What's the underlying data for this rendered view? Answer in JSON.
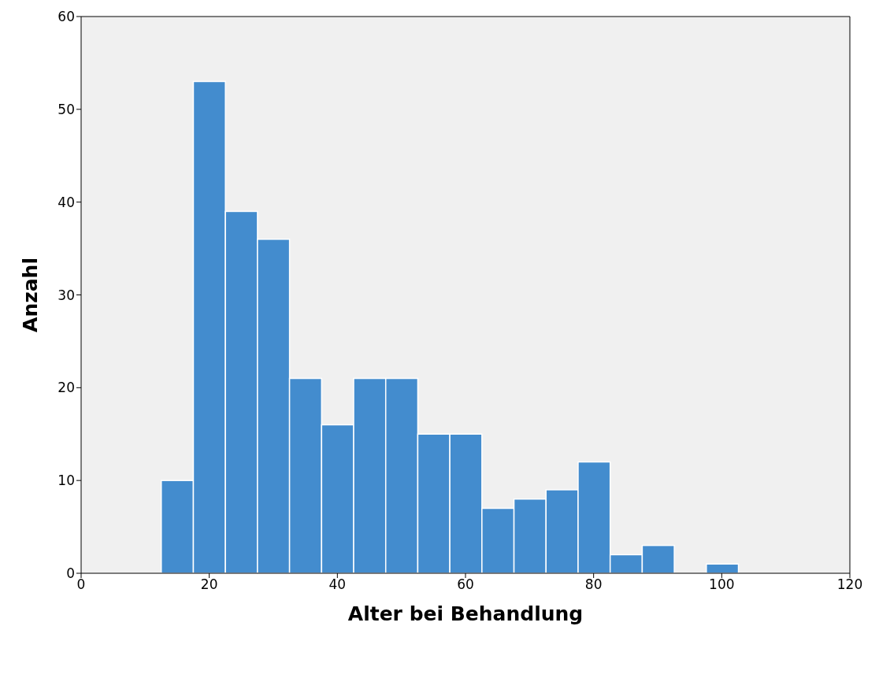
{
  "chart_data": {
    "type": "histogram",
    "xlabel": "Alter bei Behandlung",
    "ylabel": "Anzahl",
    "bins": [
      12.5,
      17.5,
      22.5,
      27.5,
      32.5,
      37.5,
      42.5,
      47.5,
      52.5,
      57.5,
      62.5,
      67.5,
      72.5,
      77.5,
      82.5,
      87.5,
      92.5,
      97.5,
      102.5
    ],
    "values": [
      10,
      53,
      39,
      36,
      21,
      16,
      21,
      21,
      15,
      15,
      7,
      8,
      9,
      12,
      2,
      3,
      0,
      1
    ],
    "color": "#438cce",
    "xlim": [
      0,
      120
    ],
    "xticks": [
      0,
      20,
      40,
      60,
      80,
      100,
      120
    ],
    "ylim": [
      0,
      60
    ],
    "yticks": [
      0,
      10,
      20,
      30,
      40,
      50,
      60
    ],
    "grid": false
  }
}
